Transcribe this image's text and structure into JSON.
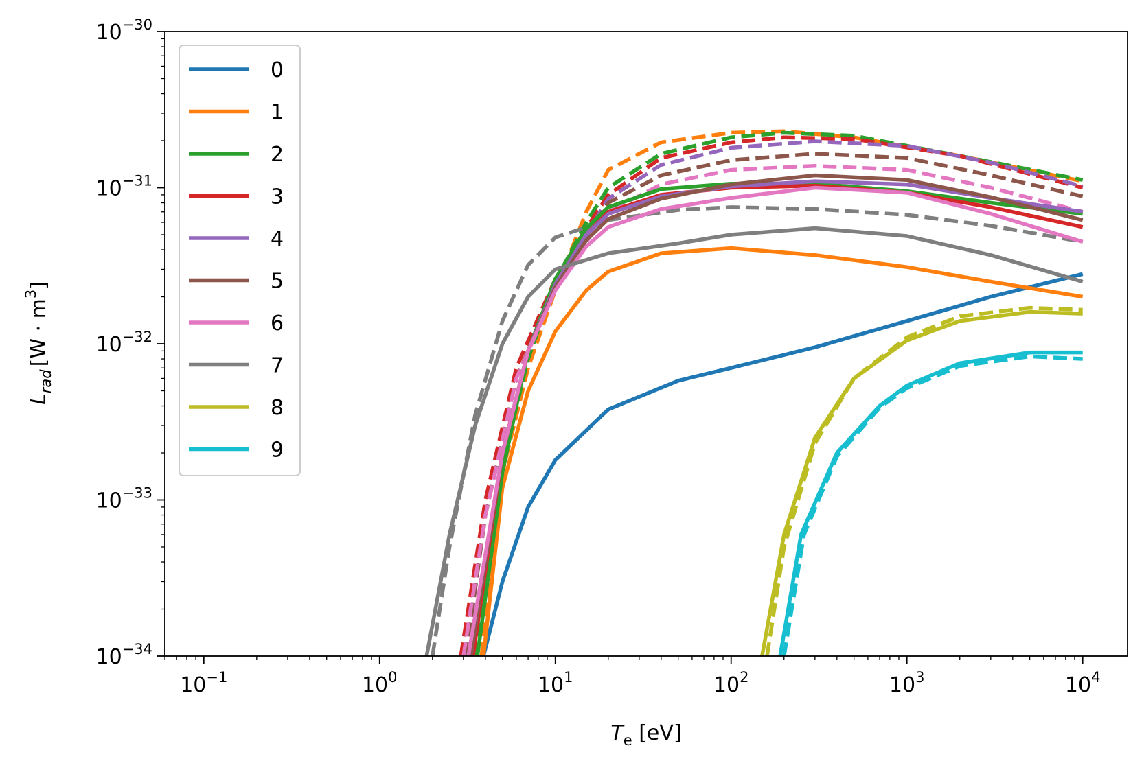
{
  "chart_data": {
    "type": "line",
    "xscale": "log",
    "yscale": "log",
    "xlim": [
      0.06,
      18000
    ],
    "ylim": [
      1e-34,
      1e-30
    ],
    "xlabel": {
      "symbol": "T",
      "sub": "e",
      "unit": "[eV]"
    },
    "ylabel": {
      "symbol": "L",
      "sub": "rad",
      "unit_pre": "[W · m",
      "unit_sup": "3",
      "unit_post": "]"
    },
    "x_ticks": [
      {
        "base": "10",
        "exp": "−1",
        "value": 0.1
      },
      {
        "base": "10",
        "exp": "0",
        "value": 1
      },
      {
        "base": "10",
        "exp": "1",
        "value": 10
      },
      {
        "base": "10",
        "exp": "2",
        "value": 100
      },
      {
        "base": "10",
        "exp": "3",
        "value": 1000
      },
      {
        "base": "10",
        "exp": "4",
        "value": 10000
      }
    ],
    "y_ticks": [
      {
        "base": "10",
        "exp": "−34",
        "value": 1e-34
      },
      {
        "base": "10",
        "exp": "−33",
        "value": 1e-33
      },
      {
        "base": "10",
        "exp": "−32",
        "value": 1e-32
      },
      {
        "base": "10",
        "exp": "−31",
        "value": 1e-31
      },
      {
        "base": "10",
        "exp": "−30",
        "value": 1e-30
      }
    ],
    "grid": false,
    "legend": {
      "placement": "upper-left",
      "entries": [
        "0",
        "1",
        "2",
        "3",
        "4",
        "5",
        "6",
        "7",
        "8",
        "9"
      ]
    },
    "series": [
      {
        "name": "0",
        "color": "#1f77b4",
        "solid": [
          [
            3.9,
            1e-34
          ],
          [
            5,
            3e-34
          ],
          [
            7,
            9e-34
          ],
          [
            10,
            1.8e-33
          ],
          [
            20,
            3.8e-33
          ],
          [
            50,
            5.8e-33
          ],
          [
            100,
            7e-33
          ],
          [
            300,
            9.5e-33
          ],
          [
            1000,
            1.4e-32
          ],
          [
            3000,
            2e-32
          ],
          [
            10000,
            2.8e-32
          ]
        ],
        "dashed": []
      },
      {
        "name": "1",
        "color": "#ff7f0e",
        "solid": [
          [
            3.9,
            1e-34
          ],
          [
            5,
            1.2e-33
          ],
          [
            7,
            5e-33
          ],
          [
            10,
            1.2e-32
          ],
          [
            15,
            2.2e-32
          ],
          [
            20,
            2.9e-32
          ],
          [
            40,
            3.8e-32
          ],
          [
            100,
            4.1e-32
          ],
          [
            300,
            3.7e-32
          ],
          [
            1000,
            3.1e-32
          ],
          [
            3000,
            2.5e-32
          ],
          [
            10000,
            2e-32
          ]
        ],
        "dashed": [
          [
            3.8,
            1e-34
          ],
          [
            5,
            1.5e-33
          ],
          [
            7,
            7e-33
          ],
          [
            10,
            2.2e-32
          ],
          [
            15,
            7e-32
          ],
          [
            20,
            1.3e-31
          ],
          [
            40,
            1.95e-31
          ],
          [
            100,
            2.25e-31
          ],
          [
            200,
            2.3e-31
          ],
          [
            500,
            2.1e-31
          ],
          [
            2000,
            1.6e-31
          ],
          [
            10000,
            1.1e-31
          ]
        ]
      },
      {
        "name": "2",
        "color": "#2ca02c",
        "solid": [
          [
            3.6,
            1e-34
          ],
          [
            5,
            1.5e-33
          ],
          [
            7,
            9e-33
          ],
          [
            10,
            2.6e-32
          ],
          [
            15,
            5.5e-32
          ],
          [
            20,
            7.5e-32
          ],
          [
            40,
            9.8e-32
          ],
          [
            100,
            1.06e-31
          ],
          [
            300,
            1.06e-31
          ],
          [
            1000,
            9.5e-32
          ],
          [
            3000,
            8e-32
          ],
          [
            10000,
            6.8e-32
          ]
        ],
        "dashed": [
          [
            3.5,
            1e-34
          ],
          [
            5,
            1.7e-33
          ],
          [
            7,
            8e-33
          ],
          [
            10,
            2.5e-32
          ],
          [
            15,
            6e-32
          ],
          [
            20,
            1e-31
          ],
          [
            40,
            1.65e-31
          ],
          [
            100,
            2.1e-31
          ],
          [
            200,
            2.25e-31
          ],
          [
            500,
            2.15e-31
          ],
          [
            2000,
            1.6e-31
          ],
          [
            10000,
            1.12e-31
          ]
        ]
      },
      {
        "name": "3",
        "color": "#d62728",
        "solid": [
          [
            3.4,
            1e-34
          ],
          [
            5,
            2e-33
          ],
          [
            7,
            9e-33
          ],
          [
            10,
            2.4e-32
          ],
          [
            15,
            5e-32
          ],
          [
            20,
            7e-32
          ],
          [
            40,
            9e-32
          ],
          [
            100,
            1e-31
          ],
          [
            300,
            1.03e-31
          ],
          [
            1000,
            9.3e-32
          ],
          [
            3000,
            7.5e-32
          ],
          [
            10000,
            5.6e-32
          ]
        ],
        "dashed": [
          [
            2.9,
            1e-34
          ],
          [
            4,
            1e-33
          ],
          [
            6,
            7e-33
          ],
          [
            10,
            2.6e-32
          ],
          [
            15,
            5.5e-32
          ],
          [
            20,
            9e-32
          ],
          [
            40,
            1.55e-31
          ],
          [
            100,
            1.95e-31
          ],
          [
            200,
            2.1e-31
          ],
          [
            500,
            2.05e-31
          ],
          [
            2000,
            1.6e-31
          ],
          [
            10000,
            1e-31
          ]
        ]
      },
      {
        "name": "4",
        "color": "#9467bd",
        "solid": [
          [
            3.3,
            1e-34
          ],
          [
            5,
            2e-33
          ],
          [
            7,
            9e-33
          ],
          [
            10,
            2.4e-32
          ],
          [
            15,
            5e-32
          ],
          [
            20,
            6.8e-32
          ],
          [
            40,
            8.8e-32
          ],
          [
            100,
            1.02e-31
          ],
          [
            300,
            1.1e-31
          ],
          [
            1000,
            1.05e-31
          ],
          [
            3000,
            8.6e-32
          ],
          [
            10000,
            7e-32
          ]
        ],
        "dashed": [
          [
            3.1,
            1e-34
          ],
          [
            4,
            8e-34
          ],
          [
            6,
            6e-33
          ],
          [
            10,
            2.3e-32
          ],
          [
            15,
            5e-32
          ],
          [
            20,
            8.5e-32
          ],
          [
            40,
            1.4e-31
          ],
          [
            100,
            1.8e-31
          ],
          [
            300,
            1.98e-31
          ],
          [
            1000,
            1.85e-31
          ],
          [
            3000,
            1.45e-31
          ],
          [
            10000,
            1.02e-31
          ]
        ]
      },
      {
        "name": "5",
        "color": "#8c564b",
        "solid": [
          [
            3.3,
            1e-34
          ],
          [
            5,
            2e-33
          ],
          [
            7,
            9e-33
          ],
          [
            10,
            2.3e-32
          ],
          [
            15,
            4.6e-32
          ],
          [
            20,
            6.3e-32
          ],
          [
            40,
            8.5e-32
          ],
          [
            100,
            1.05e-31
          ],
          [
            300,
            1.2e-31
          ],
          [
            1000,
            1.12e-31
          ],
          [
            3000,
            8.7e-32
          ],
          [
            10000,
            6.2e-32
          ]
        ],
        "dashed": [
          [
            3.1,
            1e-34
          ],
          [
            4,
            8e-34
          ],
          [
            6,
            6e-33
          ],
          [
            10,
            2.3e-32
          ],
          [
            15,
            4.8e-32
          ],
          [
            20,
            8e-32
          ],
          [
            40,
            1.2e-31
          ],
          [
            100,
            1.5e-31
          ],
          [
            300,
            1.65e-31
          ],
          [
            1000,
            1.55e-31
          ],
          [
            3000,
            1.2e-31
          ],
          [
            10000,
            8.8e-32
          ]
        ]
      },
      {
        "name": "6",
        "color": "#e377c2",
        "solid": [
          [
            3.2,
            1e-34
          ],
          [
            5,
            2e-33
          ],
          [
            7,
            9e-33
          ],
          [
            10,
            2.2e-32
          ],
          [
            15,
            4.2e-32
          ],
          [
            20,
            5.6e-32
          ],
          [
            40,
            7.3e-32
          ],
          [
            100,
            8.6e-32
          ],
          [
            300,
            1e-31
          ],
          [
            1000,
            9.3e-32
          ],
          [
            3000,
            6.8e-32
          ],
          [
            10000,
            4.5e-32
          ]
        ],
        "dashed": [
          [
            3,
            1e-34
          ],
          [
            4,
            8e-34
          ],
          [
            6,
            6e-33
          ],
          [
            10,
            2.2e-32
          ],
          [
            15,
            4.5e-32
          ],
          [
            20,
            7e-32
          ],
          [
            40,
            1.05e-31
          ],
          [
            100,
            1.3e-31
          ],
          [
            300,
            1.38e-31
          ],
          [
            1000,
            1.3e-31
          ],
          [
            3000,
            1e-31
          ],
          [
            10000,
            7e-32
          ]
        ]
      },
      {
        "name": "7",
        "color": "#7f7f7f",
        "solid": [
          [
            1.85,
            1e-34
          ],
          [
            2.5,
            6e-34
          ],
          [
            3.5,
            3e-33
          ],
          [
            5,
            1e-32
          ],
          [
            7,
            2e-32
          ],
          [
            10,
            3e-32
          ],
          [
            20,
            3.8e-32
          ],
          [
            50,
            4.4e-32
          ],
          [
            100,
            5e-32
          ],
          [
            300,
            5.5e-32
          ],
          [
            1000,
            4.9e-32
          ],
          [
            3000,
            3.7e-32
          ],
          [
            10000,
            2.5e-32
          ]
        ],
        "dashed": [
          [
            2,
            1e-34
          ],
          [
            2.5,
            5e-34
          ],
          [
            3.5,
            3.5e-33
          ],
          [
            5,
            1.4e-32
          ],
          [
            7,
            3.2e-32
          ],
          [
            10,
            4.8e-32
          ],
          [
            20,
            6.2e-32
          ],
          [
            50,
            7.2e-32
          ],
          [
            100,
            7.5e-32
          ],
          [
            300,
            7.3e-32
          ],
          [
            1000,
            6.7e-32
          ],
          [
            3000,
            5.7e-32
          ],
          [
            10000,
            4.5e-32
          ]
        ]
      },
      {
        "name": "8",
        "color": "#bcbd22",
        "solid": [
          [
            150,
            1e-34
          ],
          [
            200,
            6e-34
          ],
          [
            300,
            2.5e-33
          ],
          [
            500,
            6e-33
          ],
          [
            1000,
            1.05e-32
          ],
          [
            2000,
            1.4e-32
          ],
          [
            5000,
            1.6e-32
          ],
          [
            10000,
            1.56e-32
          ]
        ],
        "dashed": [
          [
            160,
            1e-34
          ],
          [
            200,
            5e-34
          ],
          [
            300,
            2.3e-33
          ],
          [
            500,
            6e-33
          ],
          [
            1000,
            1.1e-32
          ],
          [
            2000,
            1.5e-32
          ],
          [
            5000,
            1.7e-32
          ],
          [
            10000,
            1.65e-32
          ]
        ]
      },
      {
        "name": "9",
        "color": "#17becf",
        "solid": [
          [
            190,
            1e-34
          ],
          [
            250,
            6e-34
          ],
          [
            400,
            2e-33
          ],
          [
            700,
            4e-33
          ],
          [
            1000,
            5.4e-33
          ],
          [
            2000,
            7.5e-33
          ],
          [
            5000,
            8.8e-33
          ],
          [
            10000,
            8.8e-33
          ]
        ],
        "dashed": [
          [
            200,
            1e-34
          ],
          [
            260,
            6e-34
          ],
          [
            400,
            1.9e-33
          ],
          [
            700,
            3.9e-33
          ],
          [
            1000,
            5.2e-33
          ],
          [
            2000,
            7.2e-33
          ],
          [
            5000,
            8.3e-33
          ],
          [
            10000,
            8e-33
          ]
        ]
      }
    ]
  }
}
